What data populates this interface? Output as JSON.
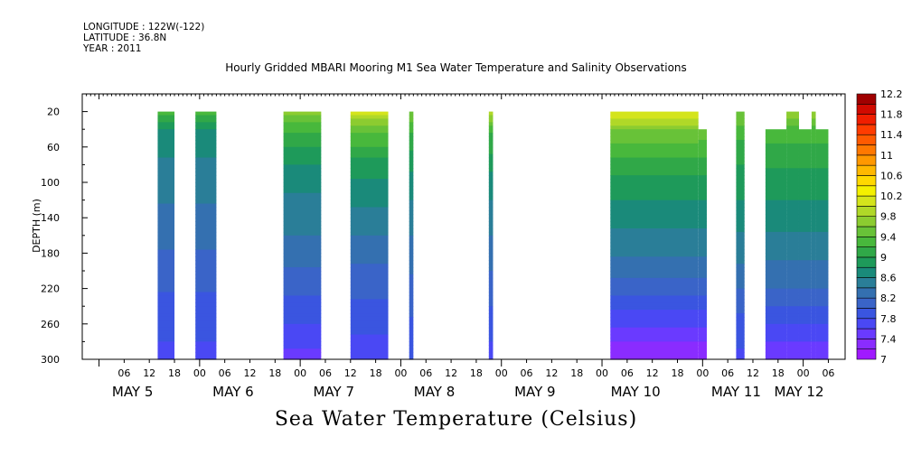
{
  "header": {
    "longitude": "LONGITUDE : 122W(-122)",
    "latitude": "LATITUDE : 36.8N",
    "year": "YEAR : 2011"
  },
  "chart_data": {
    "type": "heatmap",
    "title": "Hourly Gridded MBARI Mooring M1 Sea Water Temperature and Salinity Observations",
    "xlabel": "Sea Water Temperature (Celsius)",
    "ylabel": "DEPTH (m)",
    "x_unit": "hours since May 5 00:00 (2011)",
    "xlim": [
      -4,
      178
    ],
    "ylim": [
      300,
      0
    ],
    "y_ticks": [
      20,
      60,
      100,
      140,
      180,
      220,
      260,
      300
    ],
    "x_hour_ticks": [
      {
        "t": 6,
        "label": "06"
      },
      {
        "t": 12,
        "label": "12"
      },
      {
        "t": 18,
        "label": "18"
      },
      {
        "t": 24,
        "label": "00"
      },
      {
        "t": 30,
        "label": "06"
      },
      {
        "t": 36,
        "label": "12"
      },
      {
        "t": 42,
        "label": "18"
      },
      {
        "t": 48,
        "label": "00"
      },
      {
        "t": 54,
        "label": "06"
      },
      {
        "t": 60,
        "label": "12"
      },
      {
        "t": 66,
        "label": "18"
      },
      {
        "t": 72,
        "label": "00"
      },
      {
        "t": 78,
        "label": "06"
      },
      {
        "t": 84,
        "label": "12"
      },
      {
        "t": 90,
        "label": "18"
      },
      {
        "t": 96,
        "label": "00"
      },
      {
        "t": 102,
        "label": "06"
      },
      {
        "t": 108,
        "label": "12"
      },
      {
        "t": 114,
        "label": "18"
      },
      {
        "t": 120,
        "label": "00"
      },
      {
        "t": 126,
        "label": "06"
      },
      {
        "t": 132,
        "label": "12"
      },
      {
        "t": 138,
        "label": "18"
      },
      {
        "t": 144,
        "label": "00"
      },
      {
        "t": 150,
        "label": "06"
      },
      {
        "t": 156,
        "label": "12"
      },
      {
        "t": 162,
        "label": "18"
      },
      {
        "t": 168,
        "label": "00"
      },
      {
        "t": 174,
        "label": "06"
      }
    ],
    "day_labels": [
      {
        "t": 8,
        "label": "MAY  5"
      },
      {
        "t": 32,
        "label": "MAY  6"
      },
      {
        "t": 56,
        "label": "MAY  7"
      },
      {
        "t": 80,
        "label": "MAY  8"
      },
      {
        "t": 104,
        "label": "MAY  9"
      },
      {
        "t": 128,
        "label": "MAY 10"
      },
      {
        "t": 152,
        "label": "MAY 11"
      },
      {
        "t": 167,
        "label": "MAY 12"
      }
    ],
    "colorbar": {
      "levels": [
        7,
        7.2,
        7.4,
        7.6,
        7.8,
        8,
        8.2,
        8.4,
        8.6,
        8.8,
        9,
        9.2,
        9.4,
        9.6,
        9.8,
        10,
        10.2,
        10.4,
        10.6,
        10.8,
        11,
        11.2,
        11.4,
        11.6,
        11.8,
        12,
        12.2
      ],
      "colors": [
        "#a01aff",
        "#8a2cff",
        "#6a3aff",
        "#4a48f4",
        "#3a55e0",
        "#3a64c8",
        "#3470b0",
        "#2a7e98",
        "#1a8a7a",
        "#1e9a5a",
        "#30a848",
        "#48b83c",
        "#68c238",
        "#8ccc30",
        "#b0d828",
        "#d4e41c",
        "#f4f000",
        "#ffd800",
        "#ffb800",
        "#ff9800",
        "#ff7800",
        "#ff5a00",
        "#ff3c00",
        "#f01e00",
        "#d00a00",
        "#a00000"
      ],
      "tick_labels": [
        "7",
        "7.4",
        "7.8",
        "8.2",
        "8.6",
        "9",
        "9.4",
        "9.8",
        "10.2",
        "10.6",
        "11",
        "11.4",
        "11.8",
        "12.2"
      ]
    },
    "segments": [
      {
        "t0": 14,
        "t1": 18,
        "depth_top": 20,
        "profile": [
          [
            20,
            9.3
          ],
          [
            40,
            8.8
          ],
          [
            80,
            8.55
          ],
          [
            140,
            8.35
          ],
          [
            200,
            8.1
          ],
          [
            260,
            7.85
          ],
          [
            300,
            7.75
          ]
        ]
      },
      {
        "t0": 23,
        "t1": 28,
        "depth_top": 20,
        "profile": [
          [
            20,
            9.3
          ],
          [
            40,
            8.8
          ],
          [
            80,
            8.55
          ],
          [
            140,
            8.35
          ],
          [
            200,
            8.1
          ],
          [
            260,
            7.85
          ],
          [
            300,
            7.75
          ]
        ]
      },
      {
        "t0": 44,
        "t1": 53,
        "depth_top": 20,
        "profile": [
          [
            20,
            9.7
          ],
          [
            45,
            9.15
          ],
          [
            90,
            8.7
          ],
          [
            160,
            8.4
          ],
          [
            220,
            8.05
          ],
          [
            270,
            7.75
          ],
          [
            300,
            7.5
          ]
        ]
      },
      {
        "t0": 60,
        "t1": 69,
        "depth_top": 20,
        "profile": [
          [
            20,
            10.1
          ],
          [
            40,
            9.45
          ],
          [
            80,
            8.9
          ],
          [
            150,
            8.45
          ],
          [
            220,
            8.05
          ],
          [
            270,
            7.8
          ],
          [
            300,
            7.7
          ]
        ]
      },
      {
        "t0": 74,
        "t1": 75,
        "depth_top": 20,
        "profile": [
          [
            20,
            9.6
          ],
          [
            50,
            9.1
          ],
          [
            100,
            8.7
          ],
          [
            180,
            8.3
          ],
          [
            300,
            7.8
          ]
        ]
      },
      {
        "t0": 93,
        "t1": 94,
        "depth_top": 20,
        "profile": [
          [
            20,
            9.9
          ],
          [
            45,
            9.2
          ],
          [
            100,
            8.7
          ],
          [
            180,
            8.3
          ],
          [
            300,
            7.7
          ]
        ]
      },
      {
        "t0": 122,
        "t1": 143,
        "depth_top": 20,
        "profile": [
          [
            20,
            10.2
          ],
          [
            45,
            9.5
          ],
          [
            90,
            9.0
          ],
          [
            150,
            8.6
          ],
          [
            200,
            8.3
          ],
          [
            250,
            7.75
          ],
          [
            300,
            7.2
          ]
        ]
      },
      {
        "t0": 143,
        "t1": 145,
        "depth_top": 40,
        "profile": [
          [
            40,
            9.5
          ],
          [
            90,
            9.0
          ],
          [
            150,
            8.6
          ],
          [
            200,
            8.3
          ],
          [
            250,
            7.75
          ],
          [
            300,
            7.2
          ]
        ]
      },
      {
        "t0": 152,
        "t1": 154,
        "depth_top": 20,
        "profile": [
          [
            20,
            9.6
          ],
          [
            60,
            9.1
          ],
          [
            120,
            8.8
          ],
          [
            200,
            8.35
          ],
          [
            260,
            7.9
          ],
          [
            300,
            7.75
          ]
        ]
      },
      {
        "t0": 159,
        "t1": 164,
        "depth_top": 40,
        "profile": [
          [
            40,
            9.3
          ],
          [
            90,
            8.95
          ],
          [
            150,
            8.65
          ],
          [
            220,
            8.2
          ],
          [
            270,
            7.7
          ],
          [
            300,
            7.4
          ]
        ]
      },
      {
        "t0": 164,
        "t1": 167,
        "depth_top": 20,
        "profile": [
          [
            20,
            9.8
          ],
          [
            40,
            9.3
          ],
          [
            90,
            8.95
          ],
          [
            150,
            8.65
          ],
          [
            220,
            8.2
          ],
          [
            270,
            7.7
          ],
          [
            300,
            7.4
          ]
        ]
      },
      {
        "t0": 167,
        "t1": 170,
        "depth_top": 40,
        "profile": [
          [
            40,
            9.3
          ],
          [
            90,
            8.95
          ],
          [
            150,
            8.65
          ],
          [
            220,
            8.2
          ],
          [
            270,
            7.7
          ],
          [
            300,
            7.4
          ]
        ]
      },
      {
        "t0": 170,
        "t1": 171,
        "depth_top": 20,
        "profile": [
          [
            20,
            9.8
          ],
          [
            40,
            9.3
          ],
          [
            90,
            8.95
          ],
          [
            150,
            8.65
          ],
          [
            220,
            8.2
          ],
          [
            270,
            7.7
          ],
          [
            300,
            7.4
          ]
        ]
      },
      {
        "t0": 171,
        "t1": 174,
        "depth_top": 40,
        "profile": [
          [
            40,
            9.3
          ],
          [
            90,
            8.95
          ],
          [
            150,
            8.65
          ],
          [
            220,
            8.2
          ],
          [
            270,
            7.7
          ],
          [
            300,
            7.4
          ]
        ]
      }
    ]
  }
}
